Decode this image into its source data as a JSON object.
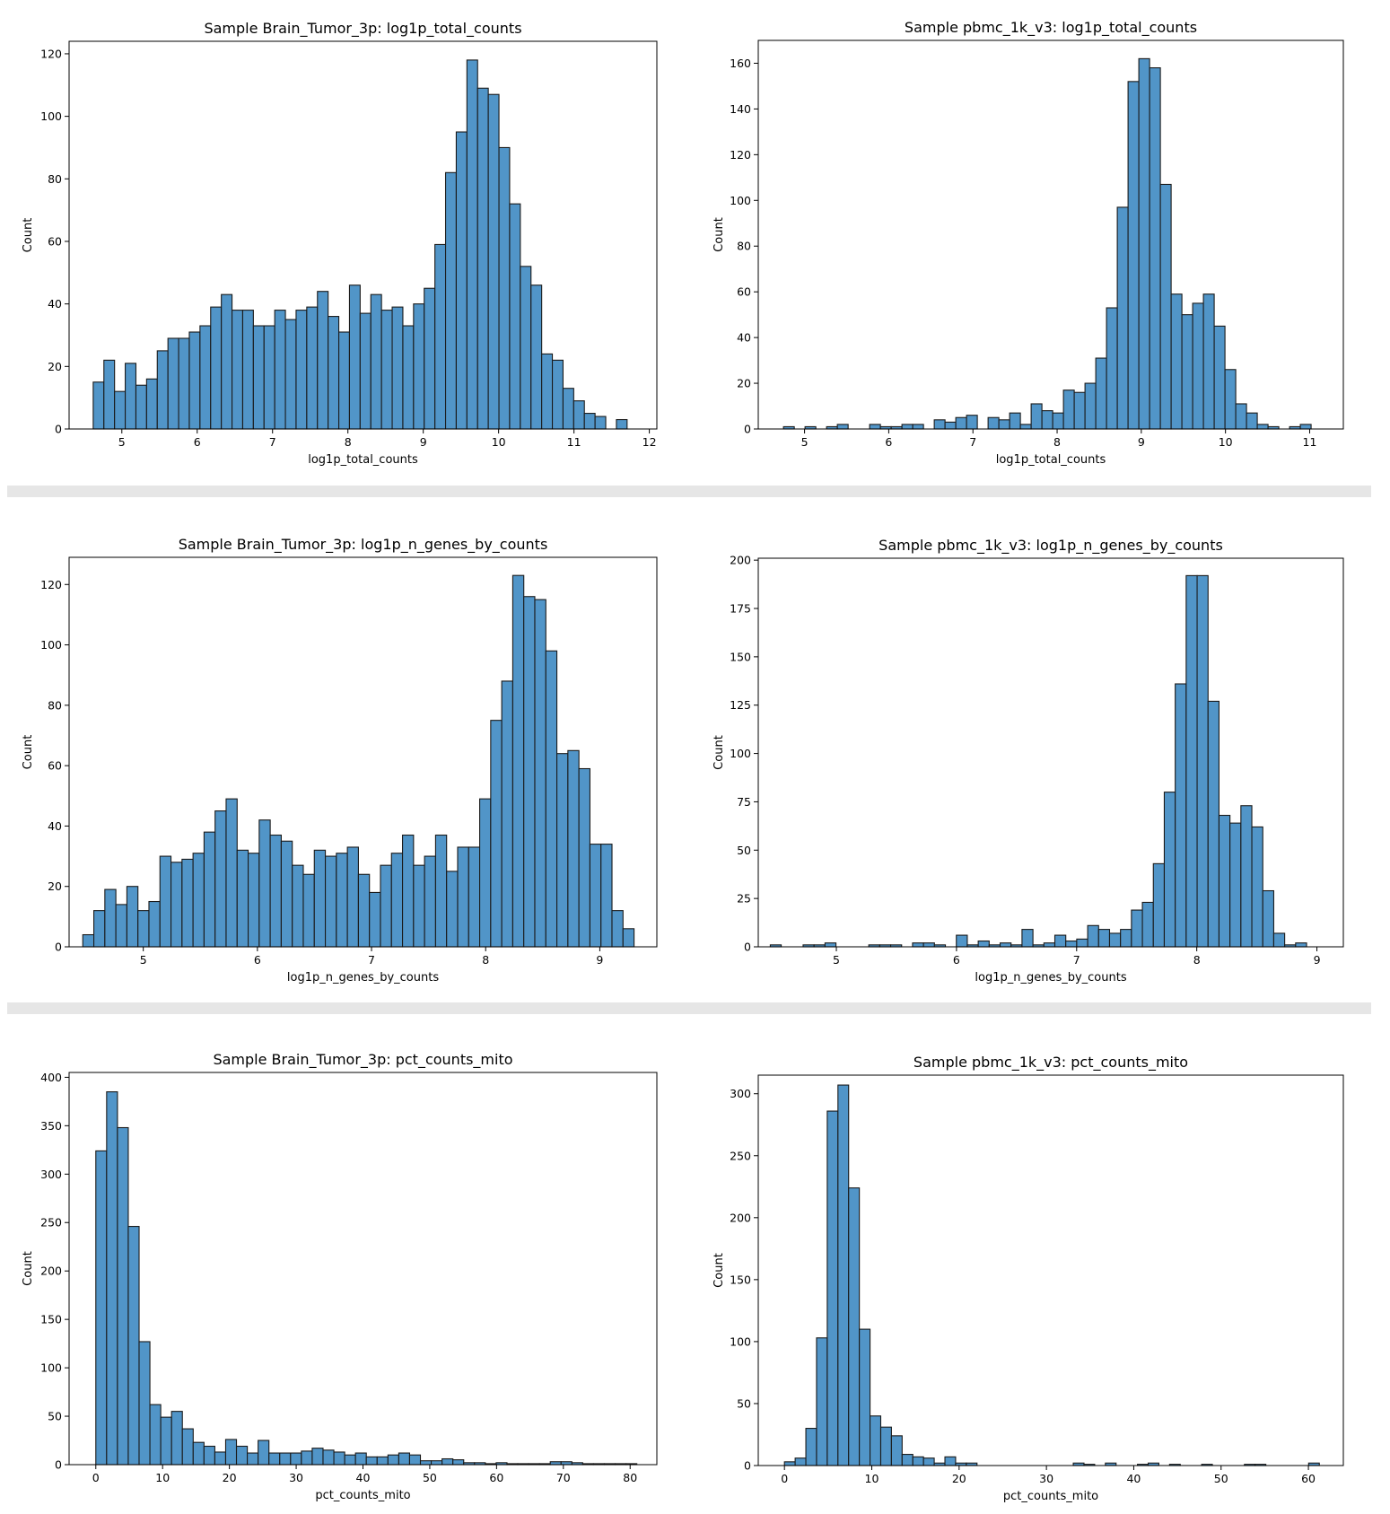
{
  "style": {
    "bar_fill": "#5195c8",
    "bar_edge": "#1a1a1a",
    "frame": "#000000",
    "background": "#ffffff",
    "separator": "#e6e6e6"
  },
  "chart_data": [
    {
      "type": "bar",
      "title": "Sample Brain_Tumor_3p: log1p_total_counts",
      "xlabel": "log1p_total_counts",
      "ylabel": "Count",
      "xlim": [
        4.3,
        12.1
      ],
      "ylim": [
        0,
        124
      ],
      "xticks": [
        5,
        6,
        7,
        8,
        9,
        10,
        11,
        12
      ],
      "yticks": [
        0,
        20,
        40,
        60,
        80,
        100,
        120
      ],
      "bin_start": 4.62,
      "bin_width": 0.1417,
      "counts": [
        15,
        22,
        12,
        21,
        14,
        16,
        25,
        29,
        29,
        31,
        33,
        39,
        43,
        38,
        38,
        33,
        33,
        38,
        35,
        38,
        39,
        44,
        36,
        31,
        46,
        37,
        43,
        38,
        39,
        33,
        40,
        45,
        59,
        82,
        95,
        118,
        109,
        107,
        90,
        72,
        52,
        46,
        24,
        22,
        13,
        9,
        5,
        4,
        0,
        3
      ]
    },
    {
      "type": "bar",
      "title": "Sample pbmc_1k_v3: log1p_total_counts",
      "xlabel": "log1p_total_counts",
      "ylabel": "Count",
      "xlim": [
        4.45,
        11.4
      ],
      "ylim": [
        0,
        170
      ],
      "xticks": [
        5,
        6,
        7,
        8,
        9,
        10,
        11
      ],
      "yticks": [
        0,
        20,
        40,
        60,
        80,
        100,
        120,
        140,
        160
      ],
      "bin_start": 4.75,
      "bin_width": 0.1279,
      "counts": [
        1,
        0,
        1,
        0,
        1,
        2,
        0,
        0,
        2,
        1,
        1,
        2,
        2,
        0,
        4,
        3,
        5,
        6,
        0,
        5,
        4,
        7,
        2,
        11,
        8,
        7,
        17,
        16,
        20,
        31,
        53,
        97,
        152,
        162,
        158,
        107,
        59,
        50,
        55,
        59,
        45,
        26,
        11,
        7,
        2,
        1,
        0,
        1,
        2,
        0
      ]
    },
    {
      "type": "bar",
      "title": "Sample Brain_Tumor_3p: log1p_n_genes_by_counts",
      "xlabel": "log1p_n_genes_by_counts",
      "ylabel": "Count",
      "xlim": [
        4.35,
        9.5
      ],
      "ylim": [
        0,
        129
      ],
      "xticks": [
        5,
        6,
        7,
        8,
        9
      ],
      "yticks": [
        0,
        20,
        40,
        60,
        80,
        100,
        120
      ],
      "bin_start": 4.47,
      "bin_width": 0.0966,
      "counts": [
        4,
        12,
        19,
        14,
        20,
        12,
        15,
        30,
        28,
        29,
        31,
        38,
        45,
        49,
        32,
        31,
        42,
        37,
        35,
        27,
        24,
        32,
        30,
        31,
        33,
        24,
        18,
        27,
        31,
        37,
        27,
        30,
        37,
        25,
        33,
        33,
        49,
        75,
        88,
        123,
        116,
        115,
        98,
        64,
        65,
        59,
        34,
        34,
        12,
        6
      ]
    },
    {
      "type": "bar",
      "title": "Sample pbmc_1k_v3: log1p_n_genes_by_counts",
      "xlabel": "log1p_n_genes_by_counts",
      "ylabel": "Count",
      "xlim": [
        4.35,
        9.22
      ],
      "ylim": [
        0,
        201
      ],
      "xticks": [
        5,
        6,
        7,
        8,
        9
      ],
      "yticks": [
        0,
        25,
        50,
        75,
        100,
        125,
        150,
        175,
        200
      ],
      "bin_start": 4.45,
      "bin_width": 0.0911,
      "counts": [
        1,
        0,
        0,
        1,
        1,
        2,
        0,
        0,
        0,
        1,
        1,
        1,
        0,
        2,
        2,
        1,
        0,
        6,
        1,
        3,
        1,
        2,
        1,
        9,
        1,
        2,
        6,
        3,
        4,
        11,
        9,
        7,
        9,
        19,
        23,
        43,
        80,
        136,
        192,
        192,
        127,
        68,
        64,
        73,
        62,
        29,
        7,
        1,
        2,
        0
      ]
    },
    {
      "type": "bar",
      "title": "Sample Brain_Tumor_3p: pct_counts_mito",
      "xlabel": "pct_counts_mito",
      "ylabel": "Count",
      "xlim": [
        -4,
        84
      ],
      "ylim": [
        0,
        405
      ],
      "xticks": [
        0,
        10,
        20,
        30,
        40,
        50,
        60,
        70,
        80
      ],
      "yticks": [
        0,
        50,
        100,
        150,
        200,
        250,
        300,
        350,
        400
      ],
      "bin_start": 0,
      "bin_width": 1.62,
      "counts": [
        324,
        385,
        348,
        246,
        127,
        62,
        49,
        55,
        37,
        23,
        19,
        13,
        26,
        19,
        12,
        25,
        12,
        12,
        12,
        14,
        17,
        15,
        13,
        10,
        12,
        8,
        8,
        10,
        12,
        10,
        4,
        4,
        6,
        5,
        2,
        2,
        1,
        2,
        1,
        1,
        1,
        1,
        3,
        3,
        2,
        1,
        1,
        1,
        1,
        1
      ]
    },
    {
      "type": "bar",
      "title": "Sample pbmc_1k_v3: pct_counts_mito",
      "xlabel": "pct_counts_mito",
      "ylabel": "Count",
      "xlim": [
        -3,
        64
      ],
      "ylim": [
        0,
        315
      ],
      "xticks": [
        0,
        10,
        20,
        30,
        40,
        50,
        60
      ],
      "yticks": [
        0,
        50,
        100,
        150,
        200,
        250,
        300
      ],
      "bin_start": 0,
      "bin_width": 1.225,
      "counts": [
        3,
        6,
        30,
        103,
        286,
        307,
        224,
        110,
        40,
        31,
        24,
        9,
        7,
        6,
        2,
        7,
        2,
        2,
        0,
        0,
        0,
        0,
        0,
        0,
        0,
        0,
        0,
        2,
        1,
        0,
        2,
        0,
        0,
        1,
        2,
        0,
        1,
        0,
        0,
        1,
        0,
        0,
        0,
        1,
        1,
        0,
        0,
        0,
        0,
        2
      ]
    }
  ]
}
